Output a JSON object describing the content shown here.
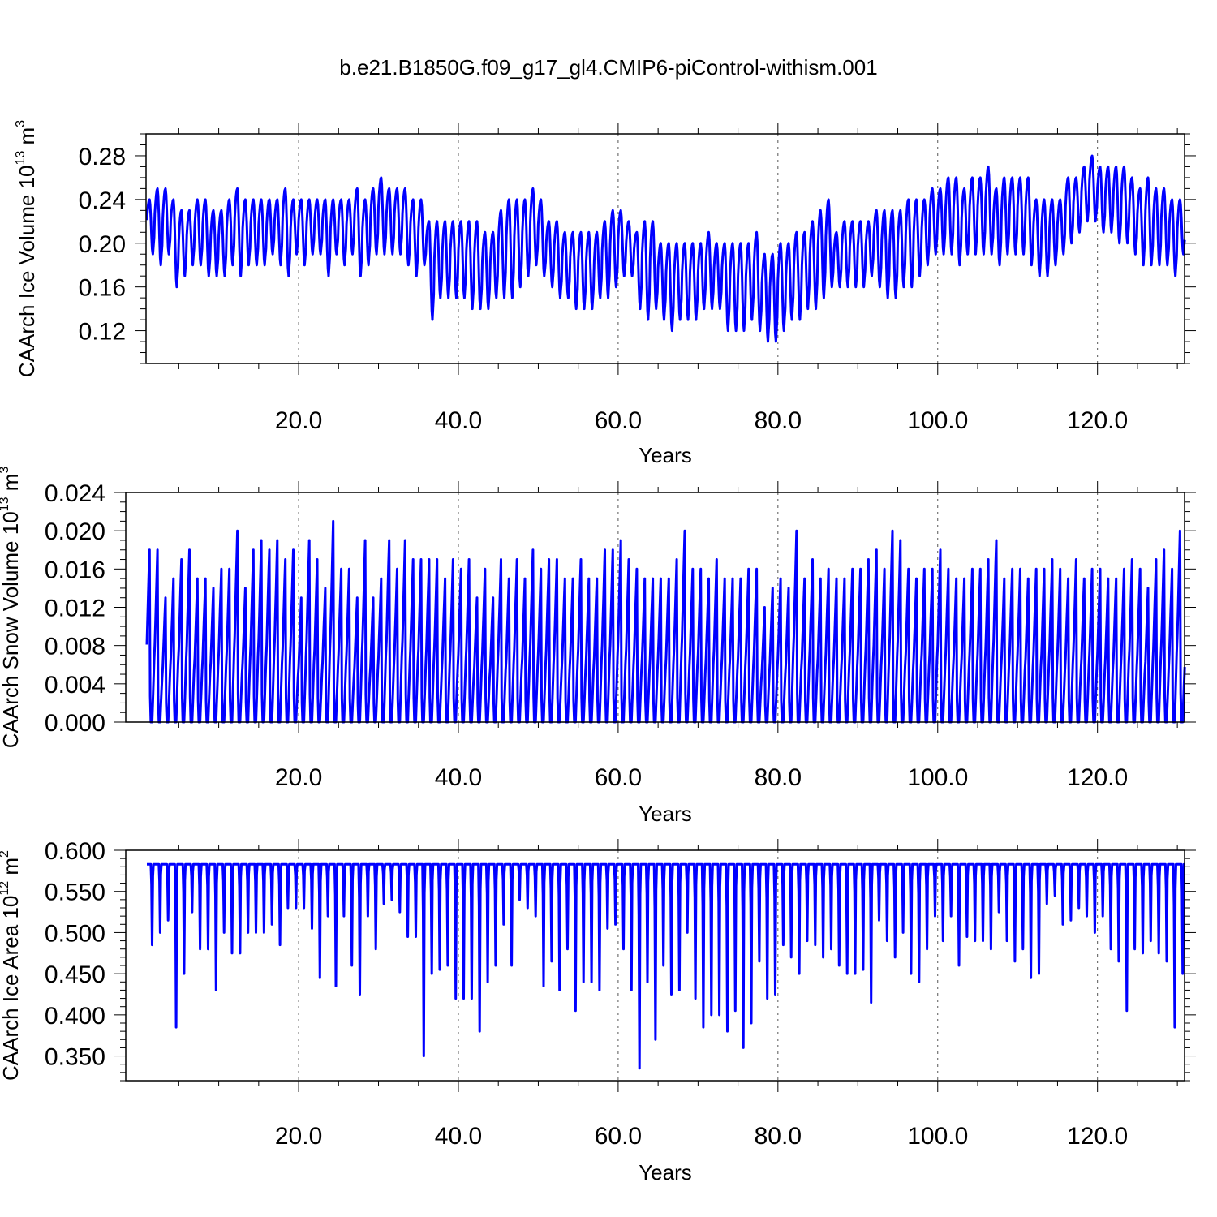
{
  "figure": {
    "title": "b.e21.B1850G.f09_g17_gl4.CMIP6-piControl-withism.001",
    "line_color": "#0000ff"
  },
  "chart_data": [
    {
      "type": "line",
      "xlabel": "Years",
      "ylabel": {
        "text": "CAArch Ice Volume 10",
        "exp": "13",
        "unit": " m",
        "unit_exp": "3"
      },
      "xlim": [
        0.9,
        130.9
      ],
      "ylim": [
        0.09,
        0.3
      ],
      "xticks": [
        20,
        40,
        60,
        80,
        100,
        120
      ],
      "xtick_labels": [
        "20.0",
        "40.0",
        "60.0",
        "80.0",
        "100.0",
        "120.0"
      ],
      "yticks": [
        0.12,
        0.16,
        0.2,
        0.24,
        0.28
      ],
      "ytick_labels": [
        "0.12",
        "0.16",
        "0.20",
        "0.24",
        "0.28"
      ],
      "x_minor_step": 5,
      "y_minor_step": 0.01,
      "grid": "vertical-dashed",
      "series": [
        {
          "resolution": "monthly",
          "seasonal_shape": "rises to annual max in late spring, falls to annual min in early autumn",
          "annual_max": [
            0.24,
            0.25,
            0.25,
            0.24,
            0.23,
            0.23,
            0.24,
            0.24,
            0.23,
            0.23,
            0.24,
            0.25,
            0.24,
            0.24,
            0.24,
            0.24,
            0.24,
            0.25,
            0.24,
            0.24,
            0.24,
            0.24,
            0.24,
            0.24,
            0.24,
            0.24,
            0.25,
            0.24,
            0.25,
            0.26,
            0.25,
            0.25,
            0.25,
            0.24,
            0.24,
            0.22,
            0.22,
            0.22,
            0.22,
            0.22,
            0.22,
            0.22,
            0.21,
            0.21,
            0.23,
            0.24,
            0.24,
            0.24,
            0.25,
            0.24,
            0.22,
            0.22,
            0.21,
            0.21,
            0.21,
            0.21,
            0.21,
            0.22,
            0.23,
            0.23,
            0.22,
            0.21,
            0.22,
            0.22,
            0.2,
            0.2,
            0.2,
            0.2,
            0.2,
            0.2,
            0.21,
            0.2,
            0.2,
            0.2,
            0.2,
            0.2,
            0.21,
            0.19,
            0.19,
            0.2,
            0.2,
            0.21,
            0.21,
            0.22,
            0.23,
            0.24,
            0.21,
            0.22,
            0.22,
            0.22,
            0.22,
            0.23,
            0.23,
            0.23,
            0.23,
            0.24,
            0.24,
            0.24,
            0.25,
            0.25,
            0.26,
            0.26,
            0.25,
            0.26,
            0.26,
            0.27,
            0.25,
            0.26,
            0.26,
            0.26,
            0.26,
            0.24,
            0.24,
            0.24,
            0.24,
            0.26,
            0.26,
            0.27,
            0.28,
            0.27,
            0.27,
            0.27,
            0.27,
            0.26,
            0.25,
            0.26,
            0.25,
            0.25,
            0.24,
            0.24
          ],
          "annual_min": [
            0.19,
            0.18,
            0.19,
            0.16,
            0.17,
            0.18,
            0.18,
            0.17,
            0.17,
            0.17,
            0.18,
            0.17,
            0.18,
            0.18,
            0.18,
            0.19,
            0.18,
            0.17,
            0.19,
            0.18,
            0.19,
            0.19,
            0.17,
            0.19,
            0.18,
            0.19,
            0.17,
            0.18,
            0.19,
            0.19,
            0.19,
            0.19,
            0.18,
            0.17,
            0.18,
            0.13,
            0.15,
            0.15,
            0.15,
            0.15,
            0.14,
            0.14,
            0.14,
            0.15,
            0.15,
            0.15,
            0.16,
            0.17,
            0.18,
            0.17,
            0.16,
            0.15,
            0.15,
            0.14,
            0.14,
            0.14,
            0.15,
            0.15,
            0.16,
            0.17,
            0.17,
            0.14,
            0.13,
            0.14,
            0.13,
            0.12,
            0.13,
            0.13,
            0.13,
            0.14,
            0.14,
            0.14,
            0.12,
            0.12,
            0.12,
            0.13,
            0.12,
            0.11,
            0.11,
            0.12,
            0.13,
            0.13,
            0.14,
            0.14,
            0.15,
            0.16,
            0.16,
            0.16,
            0.16,
            0.16,
            0.17,
            0.16,
            0.15,
            0.15,
            0.16,
            0.16,
            0.17,
            0.18,
            0.19,
            0.19,
            0.19,
            0.18,
            0.19,
            0.19,
            0.19,
            0.19,
            0.18,
            0.19,
            0.19,
            0.19,
            0.18,
            0.17,
            0.17,
            0.18,
            0.19,
            0.2,
            0.21,
            0.22,
            0.22,
            0.21,
            0.21,
            0.2,
            0.2,
            0.19,
            0.18,
            0.18,
            0.18,
            0.18,
            0.17,
            0.19
          ]
        }
      ]
    },
    {
      "type": "line",
      "xlabel": "Years",
      "ylabel": {
        "text": "CAArch Snow Volume 10",
        "exp": "13",
        "unit": " m",
        "unit_exp": "3"
      },
      "xlim": [
        0.9,
        130.9
      ],
      "ylim": [
        0.0,
        0.024
      ],
      "xticks": [
        20,
        40,
        60,
        80,
        100,
        120
      ],
      "xtick_labels": [
        "20.0",
        "40.0",
        "60.0",
        "80.0",
        "100.0",
        "120.0"
      ],
      "yticks": [
        0.0,
        0.004,
        0.008,
        0.012,
        0.016,
        0.02,
        0.024
      ],
      "ytick_labels": [
        "0.000",
        "0.004",
        "0.008",
        "0.012",
        "0.016",
        "0.020",
        "0.024"
      ],
      "x_minor_step": 5,
      "y_minor_step": 0.001,
      "grid": "vertical-dashed",
      "series": [
        {
          "resolution": "monthly",
          "seasonal_shape": "accumulates from ~0 in autumn to annual max in spring, then melts to 0",
          "annual_max": [
            0.018,
            0.013,
            0.015,
            0.017,
            0.018,
            0.015,
            0.015,
            0.014,
            0.016,
            0.016,
            0.02,
            0.014,
            0.018,
            0.019,
            0.018,
            0.019,
            0.017,
            0.018,
            0.013,
            0.019,
            0.017,
            0.014,
            0.021,
            0.016,
            0.016,
            0.013,
            0.019,
            0.013,
            0.015,
            0.019,
            0.016,
            0.019,
            0.017,
            0.017,
            0.017,
            0.017,
            0.015,
            0.017,
            0.016,
            0.017,
            0.013,
            0.016,
            0.013,
            0.017,
            0.015,
            0.017,
            0.015,
            0.018,
            0.016,
            0.017,
            0.017,
            0.015,
            0.015,
            0.017,
            0.015,
            0.015,
            0.018,
            0.018,
            0.019,
            0.017,
            0.016,
            0.015,
            0.015,
            0.015,
            0.015,
            0.017,
            0.02,
            0.016,
            0.016,
            0.015,
            0.017,
            0.015,
            0.015,
            0.015,
            0.016,
            0.016,
            0.012,
            0.014,
            0.015,
            0.014,
            0.02,
            0.015,
            0.017,
            0.015,
            0.016,
            0.015,
            0.015,
            0.016,
            0.016,
            0.017,
            0.018,
            0.016,
            0.02,
            0.019,
            0.016,
            0.015,
            0.016,
            0.016,
            0.018,
            0.016,
            0.015,
            0.015,
            0.016,
            0.016,
            0.017,
            0.019,
            0.015,
            0.016,
            0.016,
            0.015,
            0.016,
            0.016,
            0.017,
            0.016,
            0.015,
            0.017,
            0.015,
            0.016,
            0.016,
            0.015,
            0.015,
            0.016,
            0.017,
            0.016,
            0.014,
            0.017,
            0.018,
            0.016,
            0.02,
            0.016
          ],
          "annual_min": 0.0
        }
      ]
    },
    {
      "type": "line",
      "xlabel": "Years",
      "ylabel": {
        "text": "CAArch Ice Area 10",
        "exp": "12",
        "unit": " m",
        "unit_exp": "2"
      },
      "xlim": [
        0.9,
        130.9
      ],
      "ylim": [
        0.32,
        0.6
      ],
      "xticks": [
        20,
        40,
        60,
        80,
        100,
        120
      ],
      "xtick_labels": [
        "20.0",
        "40.0",
        "60.0",
        "80.0",
        "100.0",
        "120.0"
      ],
      "yticks": [
        0.35,
        0.4,
        0.45,
        0.5,
        0.55,
        0.6
      ],
      "ytick_labels": [
        "0.350",
        "0.400",
        "0.450",
        "0.500",
        "0.550",
        "0.600"
      ],
      "x_minor_step": 5,
      "y_minor_step": 0.01,
      "grid": "vertical-dashed",
      "series": [
        {
          "resolution": "monthly",
          "seasonal_shape": "near-constant plateau at annual max with a sharp dip to annual min each late summer",
          "annual_max": 0.583,
          "annual_min": [
            0.485,
            0.5,
            0.515,
            0.385,
            0.45,
            0.525,
            0.48,
            0.48,
            0.43,
            0.5,
            0.475,
            0.475,
            0.5,
            0.5,
            0.5,
            0.51,
            0.485,
            0.53,
            0.53,
            0.53,
            0.505,
            0.445,
            0.52,
            0.435,
            0.52,
            0.46,
            0.425,
            0.52,
            0.48,
            0.535,
            0.54,
            0.525,
            0.495,
            0.495,
            0.35,
            0.45,
            0.455,
            0.46,
            0.42,
            0.42,
            0.42,
            0.38,
            0.44,
            0.46,
            0.51,
            0.46,
            0.54,
            0.53,
            0.52,
            0.435,
            0.465,
            0.43,
            0.48,
            0.405,
            0.44,
            0.44,
            0.43,
            0.505,
            0.51,
            0.48,
            0.43,
            0.335,
            0.44,
            0.37,
            0.46,
            0.425,
            0.43,
            0.5,
            0.42,
            0.385,
            0.4,
            0.4,
            0.38,
            0.405,
            0.36,
            0.39,
            0.465,
            0.42,
            0.425,
            0.485,
            0.47,
            0.45,
            0.49,
            0.485,
            0.47,
            0.48,
            0.46,
            0.45,
            0.45,
            0.455,
            0.415,
            0.515,
            0.49,
            0.47,
            0.5,
            0.45,
            0.44,
            0.48,
            0.52,
            0.49,
            0.52,
            0.46,
            0.495,
            0.49,
            0.49,
            0.48,
            0.525,
            0.49,
            0.465,
            0.48,
            0.445,
            0.45,
            0.535,
            0.545,
            0.51,
            0.515,
            0.53,
            0.52,
            0.5,
            0.52,
            0.48,
            0.465,
            0.405,
            0.48,
            0.475,
            0.49,
            0.475,
            0.465,
            0.385,
            0.45
          ]
        }
      ]
    }
  ]
}
